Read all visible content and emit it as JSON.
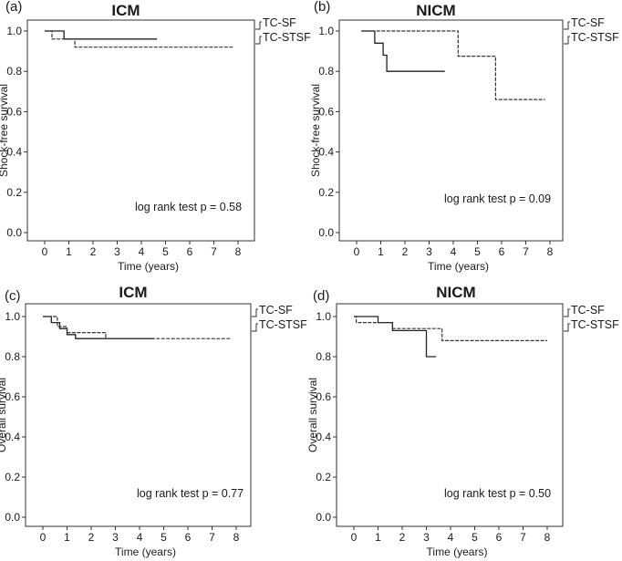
{
  "chart_data": [
    {
      "type": "line",
      "panel": "(a)",
      "title": "ICM",
      "xlabel": "Time (years)",
      "ylabel": "Shock-free survival",
      "xlim": [
        0,
        8
      ],
      "ylim": [
        0,
        1
      ],
      "xticks": [
        "0",
        "1",
        "2",
        "3",
        "4",
        "5",
        "6",
        "7",
        "8"
      ],
      "yticks": [
        "0.0",
        "0.2",
        "0.4",
        "0.6",
        "0.8",
        "1.0"
      ],
      "annotation": "log rank test p = 0.58",
      "legend": [
        "TC-SF",
        "TC-STSF"
      ],
      "series": [
        {
          "name": "TC-SF",
          "style": "solid",
          "x": [
            0,
            0.8,
            0.8,
            4.65
          ],
          "y": [
            1.0,
            1.0,
            0.96,
            0.96
          ]
        },
        {
          "name": "TC-STSF",
          "style": "dashed",
          "x": [
            0,
            0.3,
            0.3,
            1.25,
            1.25,
            7.8
          ],
          "y": [
            1.0,
            1.0,
            0.96,
            0.96,
            0.92,
            0.92
          ]
        }
      ]
    },
    {
      "type": "line",
      "panel": "(b)",
      "title": "NICM",
      "xlabel": "Time (years)",
      "ylabel": "Shock-free survival",
      "xlim": [
        0,
        8
      ],
      "ylim": [
        0,
        1
      ],
      "xticks": [
        "0",
        "1",
        "2",
        "3",
        "4",
        "5",
        "6",
        "7",
        "8"
      ],
      "yticks": [
        "0.0",
        "0.2",
        "0.4",
        "0.6",
        "0.8",
        "1.0"
      ],
      "annotation": "log rank test p = 0.09",
      "legend": [
        "TC-SF",
        "TC-STSF"
      ],
      "series": [
        {
          "name": "TC-SF",
          "style": "solid",
          "x": [
            0.2,
            0.2,
            0.75,
            0.75,
            1.1,
            1.1,
            1.25,
            1.25,
            3.65
          ],
          "y": [
            1.0,
            1.0,
            1.0,
            0.94,
            0.94,
            0.88,
            0.88,
            0.8,
            0.8
          ]
        },
        {
          "name": "TC-STSF",
          "style": "dashed",
          "x": [
            0.2,
            4.2,
            4.2,
            5.75,
            5.75,
            7.8
          ],
          "y": [
            1.0,
            1.0,
            0.875,
            0.875,
            0.66,
            0.66
          ]
        }
      ]
    },
    {
      "type": "line",
      "panel": "(c)",
      "title": "ICM",
      "xlabel": "Time (years)",
      "ylabel": "Overall survival",
      "xlim": [
        0,
        8
      ],
      "ylim": [
        0,
        1
      ],
      "xticks": [
        "0",
        "1",
        "2",
        "3",
        "4",
        "5",
        "6",
        "7",
        "8"
      ],
      "yticks": [
        "0.0",
        "0.2",
        "0.4",
        "0.6",
        "0.8",
        "1.0"
      ],
      "annotation": "log rank test p = 0.77",
      "legend": [
        "TC-SF",
        "TC-STSF"
      ],
      "series": [
        {
          "name": "TC-SF",
          "style": "solid",
          "x": [
            0,
            0.35,
            0.35,
            0.7,
            0.7,
            1.0,
            1.0,
            1.35,
            1.35,
            4.6
          ],
          "y": [
            1.0,
            1.0,
            0.97,
            0.97,
            0.94,
            0.94,
            0.91,
            0.91,
            0.89,
            0.89
          ]
        },
        {
          "name": "TC-STSF",
          "style": "dashed",
          "x": [
            0,
            0.6,
            0.6,
            1.0,
            1.0,
            2.6,
            2.6,
            7.8
          ],
          "y": [
            1.0,
            1.0,
            0.95,
            0.95,
            0.92,
            0.92,
            0.89,
            0.89
          ]
        }
      ]
    },
    {
      "type": "line",
      "panel": "(d)",
      "title": "NICM",
      "xlabel": "Time (years)",
      "ylabel": "Overall survival",
      "xlim": [
        0,
        8
      ],
      "ylim": [
        0,
        1
      ],
      "xticks": [
        "0",
        "1",
        "2",
        "3",
        "4",
        "5",
        "6",
        "7",
        "8"
      ],
      "yticks": [
        "0.0",
        "0.2",
        "0.4",
        "0.6",
        "0.8",
        "1.0"
      ],
      "annotation": "log rank test p = 0.50",
      "legend": [
        "TC-SF",
        "TC-STSF"
      ],
      "series": [
        {
          "name": "TC-SF",
          "style": "solid",
          "x": [
            0,
            1.0,
            1.0,
            1.6,
            1.6,
            3.0,
            3.0,
            3.4
          ],
          "y": [
            1.0,
            1.0,
            0.97,
            0.97,
            0.93,
            0.93,
            0.8,
            0.8
          ]
        },
        {
          "name": "TC-STSF",
          "style": "dashed",
          "x": [
            0,
            0.1,
            0.1,
            1.6,
            1.6,
            3.65,
            3.65,
            8.0
          ],
          "y": [
            1.0,
            1.0,
            0.97,
            0.97,
            0.94,
            0.94,
            0.88,
            0.88
          ]
        }
      ]
    }
  ]
}
